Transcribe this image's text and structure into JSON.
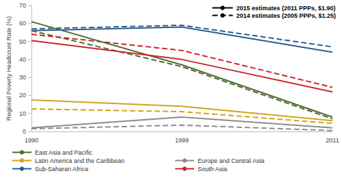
{
  "chart_data": {
    "type": "line",
    "categories": [
      "1990",
      "1999",
      "2011"
    ],
    "y_label": "Regional Poverty Headcount Rate (%)",
    "ylim": [
      0,
      70
    ],
    "yticks": [
      0,
      10,
      20,
      30,
      40,
      50,
      60,
      70
    ],
    "grid": false,
    "legend": "bottom",
    "line_style_legend": [
      {
        "name": "2015 estimates (2011 PPPs, $1.90)",
        "line_style": "solid",
        "color": "#000000"
      },
      {
        "name": "2014 estimates (2005 PPPs, $1.25)",
        "line_style": "dashed",
        "color": "#000000"
      }
    ],
    "series": [
      {
        "name": "East Asia and Pacific",
        "color": "#4f6b2d",
        "line_style": "solid",
        "values": [
          61,
          37,
          8
        ]
      },
      {
        "name": "Europe and Central Asia",
        "color": "#8c8c8c",
        "line_style": "solid",
        "values": [
          2,
          8,
          2
        ]
      },
      {
        "name": "Latin America and the Caribbean",
        "color": "#d4a21a",
        "line_style": "solid",
        "values": [
          17.5,
          14,
          6
        ]
      },
      {
        "name": "South Asia",
        "color": "#c8282d",
        "line_style": "solid",
        "values": [
          50.5,
          40,
          22
        ]
      },
      {
        "name": "Sub-Saharan Africa",
        "color": "#2f5d8a",
        "line_style": "solid",
        "values": [
          56,
          58,
          44
        ]
      },
      {
        "name": "East Asia and Pacific",
        "color": "#4f6b2d",
        "line_style": "dashed",
        "values": [
          56,
          36,
          7
        ]
      },
      {
        "name": "Europe and Central Asia",
        "color": "#8c8c8c",
        "line_style": "dashed",
        "values": [
          1.5,
          3.5,
          0.5
        ]
      },
      {
        "name": "Latin America and the Caribbean",
        "color": "#d4a21a",
        "line_style": "dashed",
        "values": [
          12.5,
          11,
          4.5
        ]
      },
      {
        "name": "South Asia",
        "color": "#c8282d",
        "line_style": "dashed",
        "values": [
          54,
          45,
          24.5
        ]
      },
      {
        "name": "Sub-Saharan Africa",
        "color": "#2f5d8a",
        "line_style": "dashed",
        "values": [
          57,
          59,
          47
        ]
      }
    ]
  }
}
